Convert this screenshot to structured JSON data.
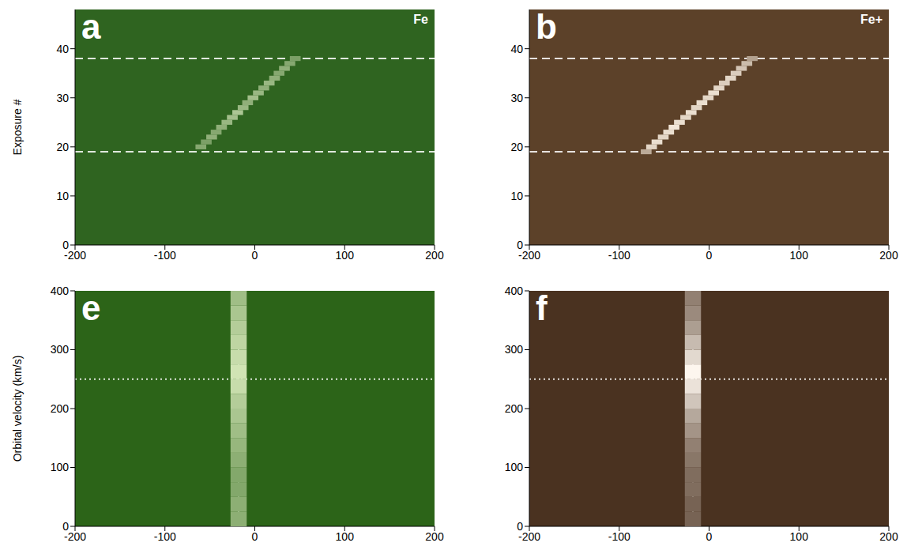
{
  "chart_data": [
    {
      "type": "heatmap",
      "panel": "a",
      "title": "Fe",
      "y_label": "Exposure #",
      "xlim": [
        -200,
        200
      ],
      "xticks": [
        -200,
        -100,
        0,
        100,
        200
      ],
      "ylim": [
        0,
        48
      ],
      "yticks": [
        0,
        10,
        20,
        30,
        40
      ],
      "colors": [
        "#2f6420",
        "#f0fad2"
      ],
      "clim": [
        0,
        1
      ],
      "cell_width": 12,
      "cell_height": 1,
      "cells": [
        [
          -60,
          20,
          0.45
        ],
        [
          -54,
          21,
          0.4
        ],
        [
          -48,
          22,
          0.5
        ],
        [
          -43,
          23,
          0.45
        ],
        [
          -37,
          24,
          0.5
        ],
        [
          -31,
          25,
          0.55
        ],
        [
          -25,
          26,
          0.6
        ],
        [
          -19,
          27,
          0.65
        ],
        [
          -13,
          28,
          0.55
        ],
        [
          -8,
          29,
          0.5
        ],
        [
          -2,
          30,
          0.6
        ],
        [
          4,
          31,
          0.55
        ],
        [
          10,
          32,
          0.5
        ],
        [
          16,
          33,
          0.55
        ],
        [
          22,
          34,
          0.5
        ],
        [
          27,
          35,
          0.45
        ],
        [
          33,
          36,
          0.5
        ],
        [
          39,
          37,
          0.45
        ],
        [
          45,
          38,
          0.4
        ]
      ],
      "hlines": [
        19,
        38
      ],
      "line_style": "dashed",
      "grid": false
    },
    {
      "type": "heatmap",
      "panel": "b",
      "title": "Fe+",
      "xlim": [
        -200,
        200
      ],
      "xticks": [
        -200,
        -100,
        0,
        100,
        200
      ],
      "ylim": [
        0,
        48
      ],
      "yticks": [
        0,
        10,
        20,
        30,
        40
      ],
      "colors": [
        "#5c4129",
        "#fbf0e2"
      ],
      "clim": [
        0,
        1
      ],
      "cell_width": 12,
      "cell_height": 1,
      "cells": [
        [
          -70,
          19,
          0.6
        ],
        [
          -64,
          20,
          0.85
        ],
        [
          -58,
          21,
          0.9
        ],
        [
          -51,
          22,
          0.85
        ],
        [
          -45,
          23,
          0.9
        ],
        [
          -39,
          24,
          0.95
        ],
        [
          -33,
          25,
          0.9
        ],
        [
          -26,
          26,
          0.85
        ],
        [
          -20,
          27,
          0.9
        ],
        [
          -14,
          28,
          0.85
        ],
        [
          -8,
          29,
          0.9
        ],
        [
          -1,
          30,
          0.85
        ],
        [
          5,
          31,
          0.9
        ],
        [
          11,
          32,
          0.85
        ],
        [
          17,
          33,
          0.8
        ],
        [
          24,
          34,
          0.85
        ],
        [
          30,
          35,
          0.8
        ],
        [
          36,
          36,
          0.75
        ],
        [
          42,
          37,
          0.7
        ],
        [
          48,
          38,
          0.55
        ]
      ],
      "hlines": [
        19,
        38
      ],
      "line_style": "dashed",
      "grid": false
    },
    {
      "type": "heatmap",
      "panel": "e",
      "y_label": "Orbital velocity (km/s)",
      "xlim": [
        -200,
        200
      ],
      "xticks": [
        -200,
        -100,
        0,
        100,
        200
      ],
      "ylim": [
        0,
        400
      ],
      "yticks": [
        0,
        100,
        200,
        300,
        400
      ],
      "colors": [
        "#2c6418",
        "#eefad0"
      ],
      "clim": [
        0,
        1
      ],
      "cell_width": 18,
      "cell_height": 25,
      "cells": [
        [
          -18,
          12.5,
          0.5
        ],
        [
          -18,
          37.5,
          0.5
        ],
        [
          -18,
          62.5,
          0.45
        ],
        [
          -18,
          87.5,
          0.45
        ],
        [
          -18,
          112.5,
          0.5
        ],
        [
          -18,
          137.5,
          0.55
        ],
        [
          -18,
          162.5,
          0.6
        ],
        [
          -18,
          187.5,
          0.65
        ],
        [
          -18,
          212.5,
          0.7
        ],
        [
          -18,
          237.5,
          0.8
        ],
        [
          -18,
          262.5,
          0.85
        ],
        [
          -18,
          287.5,
          0.8
        ],
        [
          -18,
          312.5,
          0.75
        ],
        [
          -18,
          337.5,
          0.7
        ],
        [
          -18,
          362.5,
          0.65
        ],
        [
          -18,
          387.5,
          0.6
        ]
      ],
      "vlines": [
        -18
      ],
      "hlines": [
        250
      ],
      "line_style": "dotted",
      "grid": false
    },
    {
      "type": "heatmap",
      "panel": "f",
      "xlim": [
        -200,
        200
      ],
      "xticks": [
        -200,
        -100,
        0,
        100,
        200
      ],
      "ylim": [
        0,
        400
      ],
      "yticks": [
        0,
        100,
        200,
        300,
        400
      ],
      "colors": [
        "#4a3220",
        "#fdf6ee"
      ],
      "clim": [
        0,
        1
      ],
      "cell_width": 18,
      "cell_height": 25,
      "cells": [
        [
          -18,
          12.5,
          0.25
        ],
        [
          -18,
          37.5,
          0.25
        ],
        [
          -18,
          62.5,
          0.3
        ],
        [
          -18,
          87.5,
          0.3
        ],
        [
          -18,
          112.5,
          0.35
        ],
        [
          -18,
          137.5,
          0.4
        ],
        [
          -18,
          162.5,
          0.5
        ],
        [
          -18,
          187.5,
          0.6
        ],
        [
          -18,
          212.5,
          0.75
        ],
        [
          -18,
          237.5,
          0.9
        ],
        [
          -18,
          262.5,
          1.0
        ],
        [
          -18,
          287.5,
          0.85
        ],
        [
          -18,
          312.5,
          0.7
        ],
        [
          -18,
          337.5,
          0.55
        ],
        [
          -18,
          362.5,
          0.45
        ],
        [
          -18,
          387.5,
          0.4
        ]
      ],
      "vlines": [
        -18
      ],
      "hlines": [
        250
      ],
      "line_style": "dotted",
      "grid": false
    }
  ]
}
